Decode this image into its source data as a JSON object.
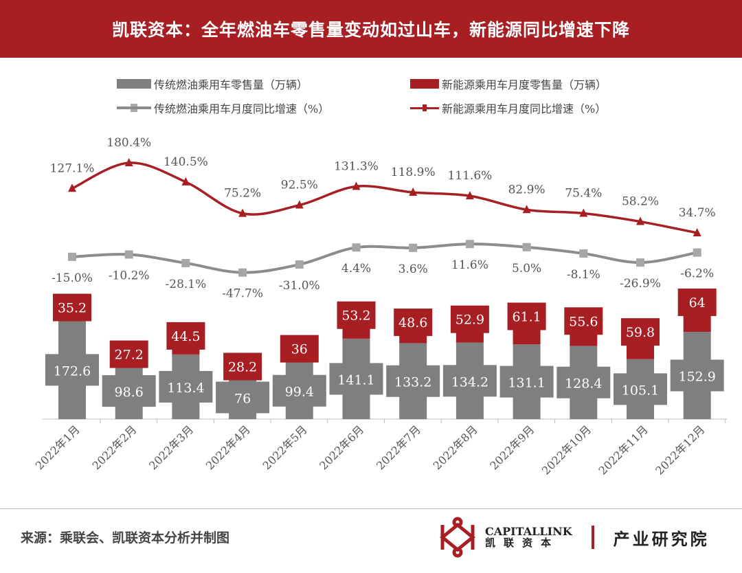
{
  "title": "凯联资本：全年燃油车零售量变动如过山车，新能源同比增速下降",
  "legend": {
    "fuel_sales": "传统燃油乘用车零售量（万辆）",
    "nev_sales": "新能源乘用车月度零售量（万辆）",
    "fuel_yoy": "传统燃油乘用车月度同比增速（%）",
    "nev_yoy": "新能源乘用车月度同比增速（%）"
  },
  "colors": {
    "fuel": "#7f7f7f",
    "nev": "#a71e23",
    "fuel_line": "#8c8c8c",
    "header": "#a71e23"
  },
  "chart_data": {
    "type": "bar",
    "stacked": true,
    "categories": [
      "2022年1月",
      "2022年2月",
      "2022年3月",
      "2022年4月",
      "2022年5月",
      "2022年6月",
      "2022年7月",
      "2022年8月",
      "2022年9月",
      "2022年10月",
      "2022年11月",
      "2022年12月"
    ],
    "series": [
      {
        "name": "传统燃油乘用车零售量（万辆）",
        "type": "bar",
        "values": [
          172.6,
          98.6,
          113.4,
          76,
          99.4,
          141.1,
          133.2,
          134.2,
          131.1,
          128.4,
          105.1,
          152.9
        ],
        "labels": [
          "172.6",
          "98.6",
          "113.4",
          "76",
          "99.4",
          "141.1",
          "133.2",
          "134.2",
          "131.1",
          "128.4",
          "105.1",
          "152.9"
        ]
      },
      {
        "name": "新能源乘用车月度零售量（万辆）",
        "type": "bar",
        "values": [
          35.2,
          27.2,
          44.5,
          28.2,
          36,
          53.2,
          48.6,
          52.9,
          61.1,
          55.6,
          59.8,
          64
        ],
        "labels": [
          "35.2",
          "27.2",
          "44.5",
          "28.2",
          "36",
          "53.2",
          "48.6",
          "52.9",
          "61.1",
          "55.6",
          "59.8",
          "64"
        ]
      },
      {
        "name": "传统燃油乘用车月度同比增速（%）",
        "type": "line",
        "values": [
          -15.0,
          -10.2,
          -28.1,
          -47.7,
          -31.0,
          4.4,
          3.6,
          11.6,
          5.0,
          -8.1,
          -26.9,
          -6.2
        ],
        "labels": [
          "-15.0%",
          "-10.2%",
          "-28.1%",
          "-47.7%",
          "-31.0%",
          "4.4%",
          "3.6%",
          "11.6%",
          "5.0%",
          "-8.1%",
          "-26.9%",
          "-6.2%"
        ]
      },
      {
        "name": "新能源乘用车月度同比增速（%）",
        "type": "line",
        "values": [
          127.1,
          180.4,
          140.5,
          75.2,
          92.5,
          131.3,
          118.9,
          111.6,
          82.9,
          75.4,
          58.2,
          34.7
        ],
        "labels": [
          "127.1%",
          "180.4%",
          "140.5%",
          "75.2%",
          "92.5%",
          "131.3%",
          "118.9%",
          "111.6%",
          "82.9%",
          "75.4%",
          "58.2%",
          "34.7%"
        ]
      }
    ],
    "legend_position": "top",
    "grid": false
  },
  "footer": {
    "source": "来源：乘联会、凯联资本分析并制图",
    "brand_en": "CAPITALLINK",
    "brand_cn": "凯联资本",
    "institute": "产业研究院"
  }
}
